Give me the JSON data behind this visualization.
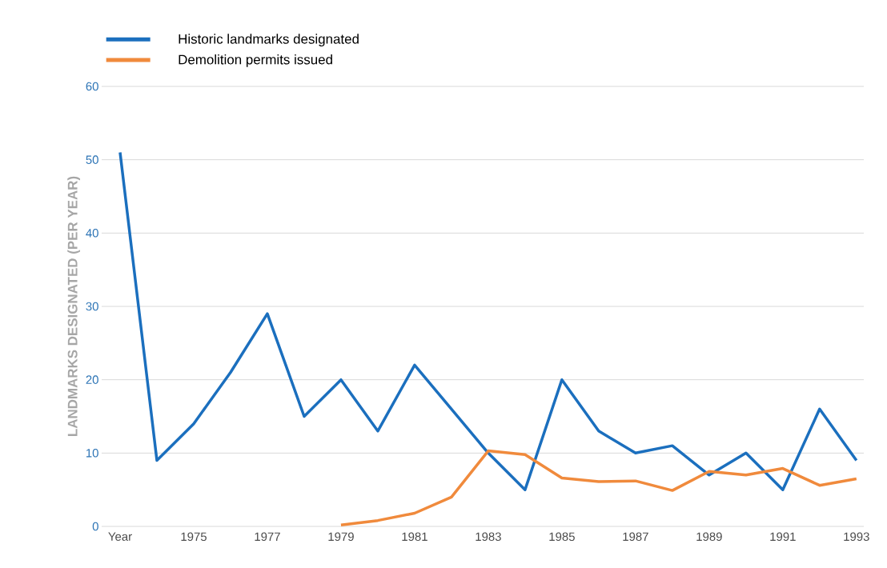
{
  "chart_data": {
    "type": "line",
    "ylabel": "LANDMARKS DESIGNATED (PER YEAR)",
    "categories": [
      "Year",
      null,
      "1975",
      null,
      "1977",
      null,
      "1979",
      null,
      "1981",
      null,
      "1983",
      null,
      "1985",
      null,
      "1987",
      null,
      "1989",
      null,
      "1991",
      null,
      "1993"
    ],
    "series": [
      {
        "name": "Historic landmarks designated",
        "color": "#1b6fbe",
        "values": [
          51,
          9,
          14,
          21,
          29,
          15,
          20,
          13,
          22,
          16,
          10,
          5,
          20,
          13,
          10,
          11,
          7,
          10,
          5,
          16,
          9
        ]
      },
      {
        "name": "Demolition permits issued",
        "color": "#f08a3c",
        "values": [
          null,
          null,
          null,
          null,
          null,
          null,
          0.2,
          0.8,
          1.8,
          4,
          10.3,
          9.8,
          6.6,
          6.1,
          6.2,
          4.9,
          7.5,
          7,
          7.9,
          5.6,
          6.5
        ]
      }
    ],
    "ylim": [
      0,
      60
    ],
    "yticks": [
      0,
      10,
      20,
      30,
      40,
      50,
      60
    ],
    "grid": "y",
    "legend": "top left",
    "marker": "none",
    "line_style": "solid"
  }
}
